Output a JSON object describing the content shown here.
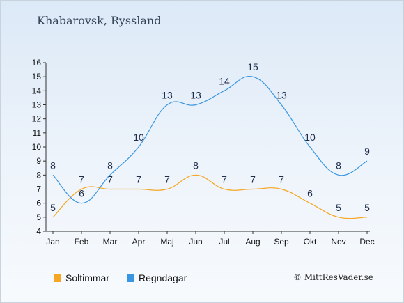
{
  "chart_data": {
    "type": "line",
    "title": "Khabarovsk, Ryssland",
    "categories": [
      "Jan",
      "Feb",
      "Mar",
      "Apr",
      "Maj",
      "Jun",
      "Jul",
      "Aug",
      "Sep",
      "Okt",
      "Nov",
      "Dec"
    ],
    "ylim": [
      4,
      16
    ],
    "yticks": [
      4,
      5,
      6,
      7,
      8,
      9,
      10,
      11,
      12,
      13,
      14,
      15,
      16
    ],
    "grid": false,
    "legend_position": "bottom-left",
    "series": [
      {
        "name": "Soltimmar",
        "color": "#f5a623",
        "values": [
          5,
          7,
          7,
          7,
          7,
          8,
          7,
          7,
          7,
          6,
          5,
          5
        ]
      },
      {
        "name": "Regndagar",
        "color": "#3a96e0",
        "values": [
          8,
          6,
          8,
          10,
          13,
          13,
          14,
          15,
          13,
          10,
          8,
          9
        ]
      }
    ],
    "copyright": "© MittResVader.se"
  }
}
